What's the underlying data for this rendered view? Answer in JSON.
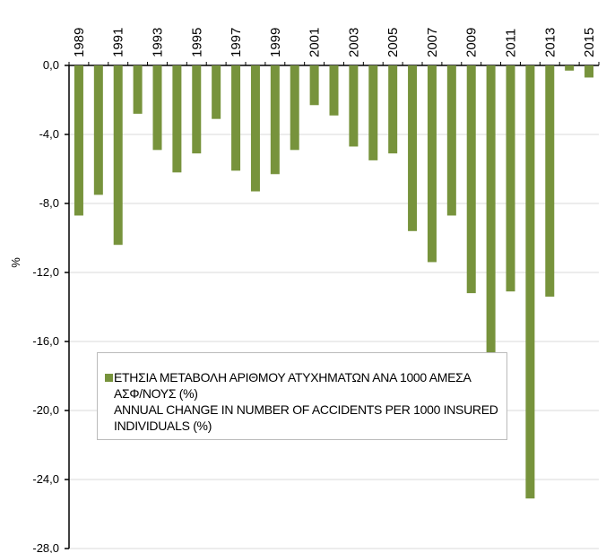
{
  "chart_data": {
    "type": "bar",
    "categories": [
      "1989",
      null,
      "1991",
      null,
      "1993",
      null,
      "1995",
      null,
      "1997",
      null,
      "1999",
      null,
      "2001",
      null,
      "2003",
      null,
      "2005",
      null,
      "2007",
      null,
      "2009",
      null,
      "2011",
      null,
      "2013",
      null,
      "2015"
    ],
    "series": [
      {
        "name": "ΕΤΗΣΙΑ ΜΕΤΑΒΟΛΗ ΑΡΙΘΜΟΥ ΑΤΥΧΗΜΑΤΩΝ ΑΝΑ 1000 ΑΜΕΣΑ ΑΣΦ/ΝΟΥΣ (%)\nANNUAL CHANGE  IN NUMBER OF ACCIDENTS PER 1000 INSURED INDIVIDUALS (%)",
        "color": "#77933c",
        "values": [
          -8.7,
          -7.5,
          -10.4,
          -2.8,
          -4.9,
          -6.2,
          -5.1,
          -3.1,
          -6.1,
          -7.3,
          -6.3,
          -4.9,
          -2.3,
          -2.9,
          -4.7,
          -5.5,
          -5.1,
          -9.6,
          -11.4,
          -8.7,
          -13.2,
          -16.8,
          -13.1,
          -25.1,
          -13.4,
          -0.3,
          -0.7
        ]
      }
    ],
    "y_label": "%",
    "ylim": [
      -28,
      0
    ],
    "yticks": [
      {
        "value": 0,
        "label": "0,0"
      },
      {
        "value": -4,
        "label": "-4,0"
      },
      {
        "value": -8,
        "label": "-8,0"
      },
      {
        "value": -12,
        "label": "-12,0"
      },
      {
        "value": -16,
        "label": "-16,0"
      },
      {
        "value": -20,
        "label": "-20,0"
      },
      {
        "value": -24,
        "label": "-24,0"
      },
      {
        "value": -28,
        "label": "-28,0"
      }
    ],
    "grid": true
  }
}
